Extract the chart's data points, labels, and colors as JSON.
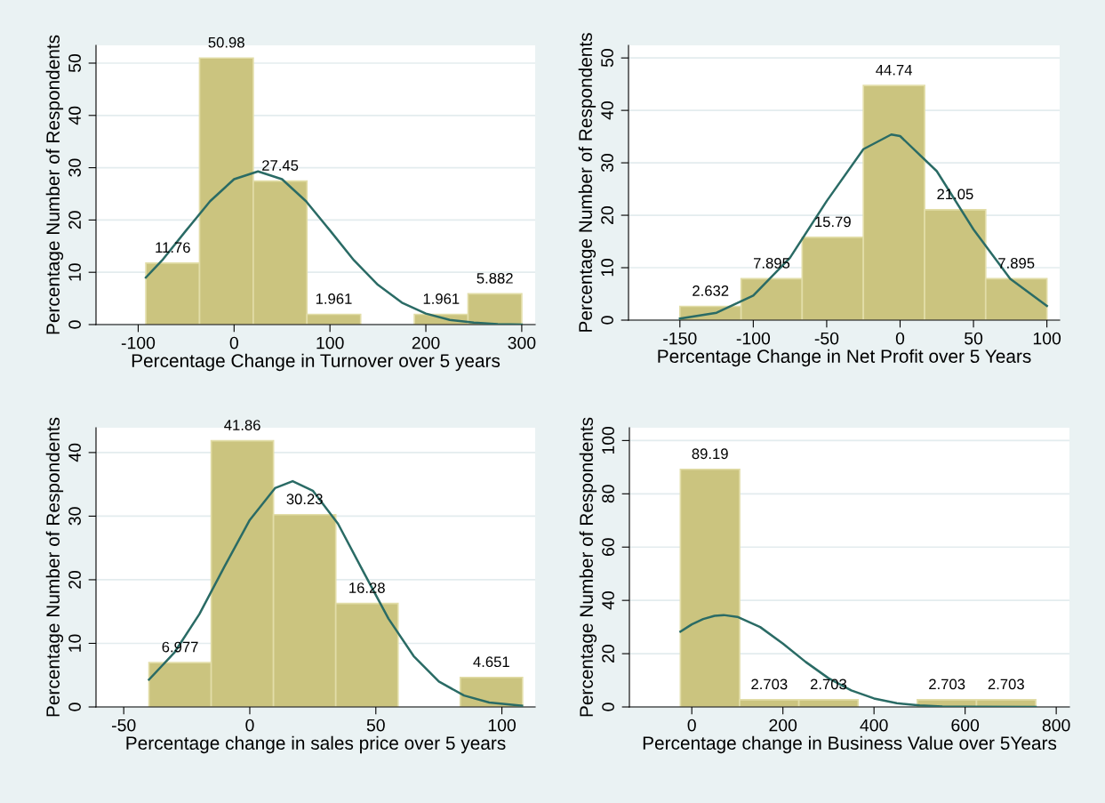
{
  "chart_data": [
    {
      "type": "histogram",
      "xlabel": "Percentage Change in Turnover over 5 years",
      "ylabel": "Percentage Number of Respondents",
      "bins": [
        -92,
        -36,
        20,
        76,
        132,
        188,
        244,
        300
      ],
      "values": [
        11.76,
        50.98,
        27.45,
        1.961,
        0,
        1.961,
        5.882
      ],
      "value_labels": [
        "11.76",
        "50.98",
        "27.45",
        "1.961",
        null,
        "1.961",
        "5.882"
      ],
      "color": "#cbc47f",
      "xlim": [
        -144,
        314
      ],
      "ylim": [
        0,
        53.4
      ],
      "xticks": [
        -100,
        0,
        100,
        200,
        300
      ],
      "yticks": [
        0,
        10,
        20,
        30,
        40,
        50
      ],
      "grid": "y",
      "series": [
        {
          "type": "line",
          "color": "#2a6b65",
          "x": [
            -92,
            -75,
            -50,
            -25,
            0,
            25,
            50,
            75,
            100,
            125,
            150,
            175,
            200,
            225,
            250,
            275,
            300
          ],
          "values": [
            9.0,
            12.3,
            18.0,
            23.6,
            27.8,
            29.3,
            27.8,
            23.6,
            18.0,
            12.3,
            7.6,
            4.2,
            2.1,
            0.9,
            0.4,
            0.1,
            0.0
          ]
        }
      ]
    },
    {
      "type": "histogram",
      "xlabel": "Percentage Change in Net Profit over 5 Years",
      "ylabel": "Percentage Number of Respondents",
      "bins": [
        -150,
        -108.3,
        -66.7,
        -25,
        16.7,
        58.3,
        100
      ],
      "values": [
        2.632,
        7.895,
        15.79,
        44.74,
        21.05,
        7.895
      ],
      "value_labels": [
        "2.632",
        "7.895",
        "15.79",
        "44.74",
        "21.05",
        "7.895"
      ],
      "color": "#cbc47f",
      "xlim": [
        -185,
        108.7
      ],
      "ylim": [
        0,
        52.4
      ],
      "xticks": [
        -150,
        -100,
        -50,
        0,
        50,
        100
      ],
      "yticks": [
        0,
        10,
        20,
        30,
        40,
        50
      ],
      "grid": "y",
      "series": [
        {
          "type": "line",
          "color": "#2a6b65",
          "x": [
            -150,
            -125,
            -100,
            -75,
            -50,
            -25,
            -6,
            0,
            25,
            50,
            75,
            100
          ],
          "values": [
            0.3,
            1.4,
            4.7,
            11.9,
            22.7,
            32.6,
            35.4,
            35.1,
            28.4,
            17.3,
            7.9,
            2.7
          ]
        }
      ]
    },
    {
      "type": "histogram",
      "xlabel": "Percentage change in sales price over 5 years",
      "ylabel": "Percentage Number of Respondents",
      "bins": [
        -40,
        -15.3,
        9.4,
        34.1,
        58.8,
        83.5,
        108.2
      ],
      "values": [
        6.977,
        41.86,
        30.23,
        16.28,
        0,
        4.651
      ],
      "value_labels": [
        "6.977",
        "41.86",
        "30.23",
        "16.28",
        null,
        "4.651"
      ],
      "color": "#cbc47f",
      "xlim": [
        -61,
        113.2
      ],
      "ylim": [
        0,
        43.9
      ],
      "xticks": [
        -50,
        0,
        50,
        100
      ],
      "yticks": [
        0,
        10,
        20,
        30,
        40
      ],
      "grid": "y",
      "series": [
        {
          "type": "line",
          "color": "#2a6b65",
          "x": [
            -40,
            -30,
            -20,
            -10,
            0,
            10,
            17,
            25,
            35,
            45,
            55,
            65,
            75,
            85,
            95,
            108
          ],
          "values": [
            4.3,
            8.5,
            14.6,
            22.1,
            29.4,
            34.4,
            35.5,
            34.0,
            28.8,
            21.3,
            13.9,
            8.0,
            4.0,
            1.8,
            0.7,
            0.2
          ]
        }
      ]
    },
    {
      "type": "histogram",
      "xlabel": "Percentage change in Business Value over 5Years",
      "ylabel": "Percentage Number of Respondents",
      "bins": [
        -25,
        105,
        235,
        365,
        495,
        625,
        755
      ],
      "values": [
        89.19,
        2.703,
        2.703,
        0,
        2.703,
        2.703
      ],
      "value_labels": [
        "89.19",
        "2.703",
        "2.703",
        null,
        "2.703",
        "2.703"
      ],
      "color": "#cbc47f",
      "xlim": [
        -137,
        829
      ],
      "ylim": [
        0,
        104.8
      ],
      "xticks": [
        0,
        200,
        400,
        600,
        800
      ],
      "yticks": [
        0,
        20,
        40,
        60,
        80,
        100
      ],
      "grid": "y",
      "series": [
        {
          "type": "line",
          "color": "#2a6b65",
          "x": [
            -25,
            0,
            25,
            50,
            70,
            100,
            150,
            200,
            250,
            300,
            350,
            400,
            450,
            500,
            550,
            600,
            755
          ],
          "values": [
            28.3,
            31.0,
            33.0,
            34.2,
            34.5,
            33.8,
            30.0,
            23.8,
            16.9,
            10.8,
            6.2,
            3.2,
            1.4,
            0.6,
            0.2,
            0.1,
            0.0
          ]
        }
      ]
    }
  ]
}
